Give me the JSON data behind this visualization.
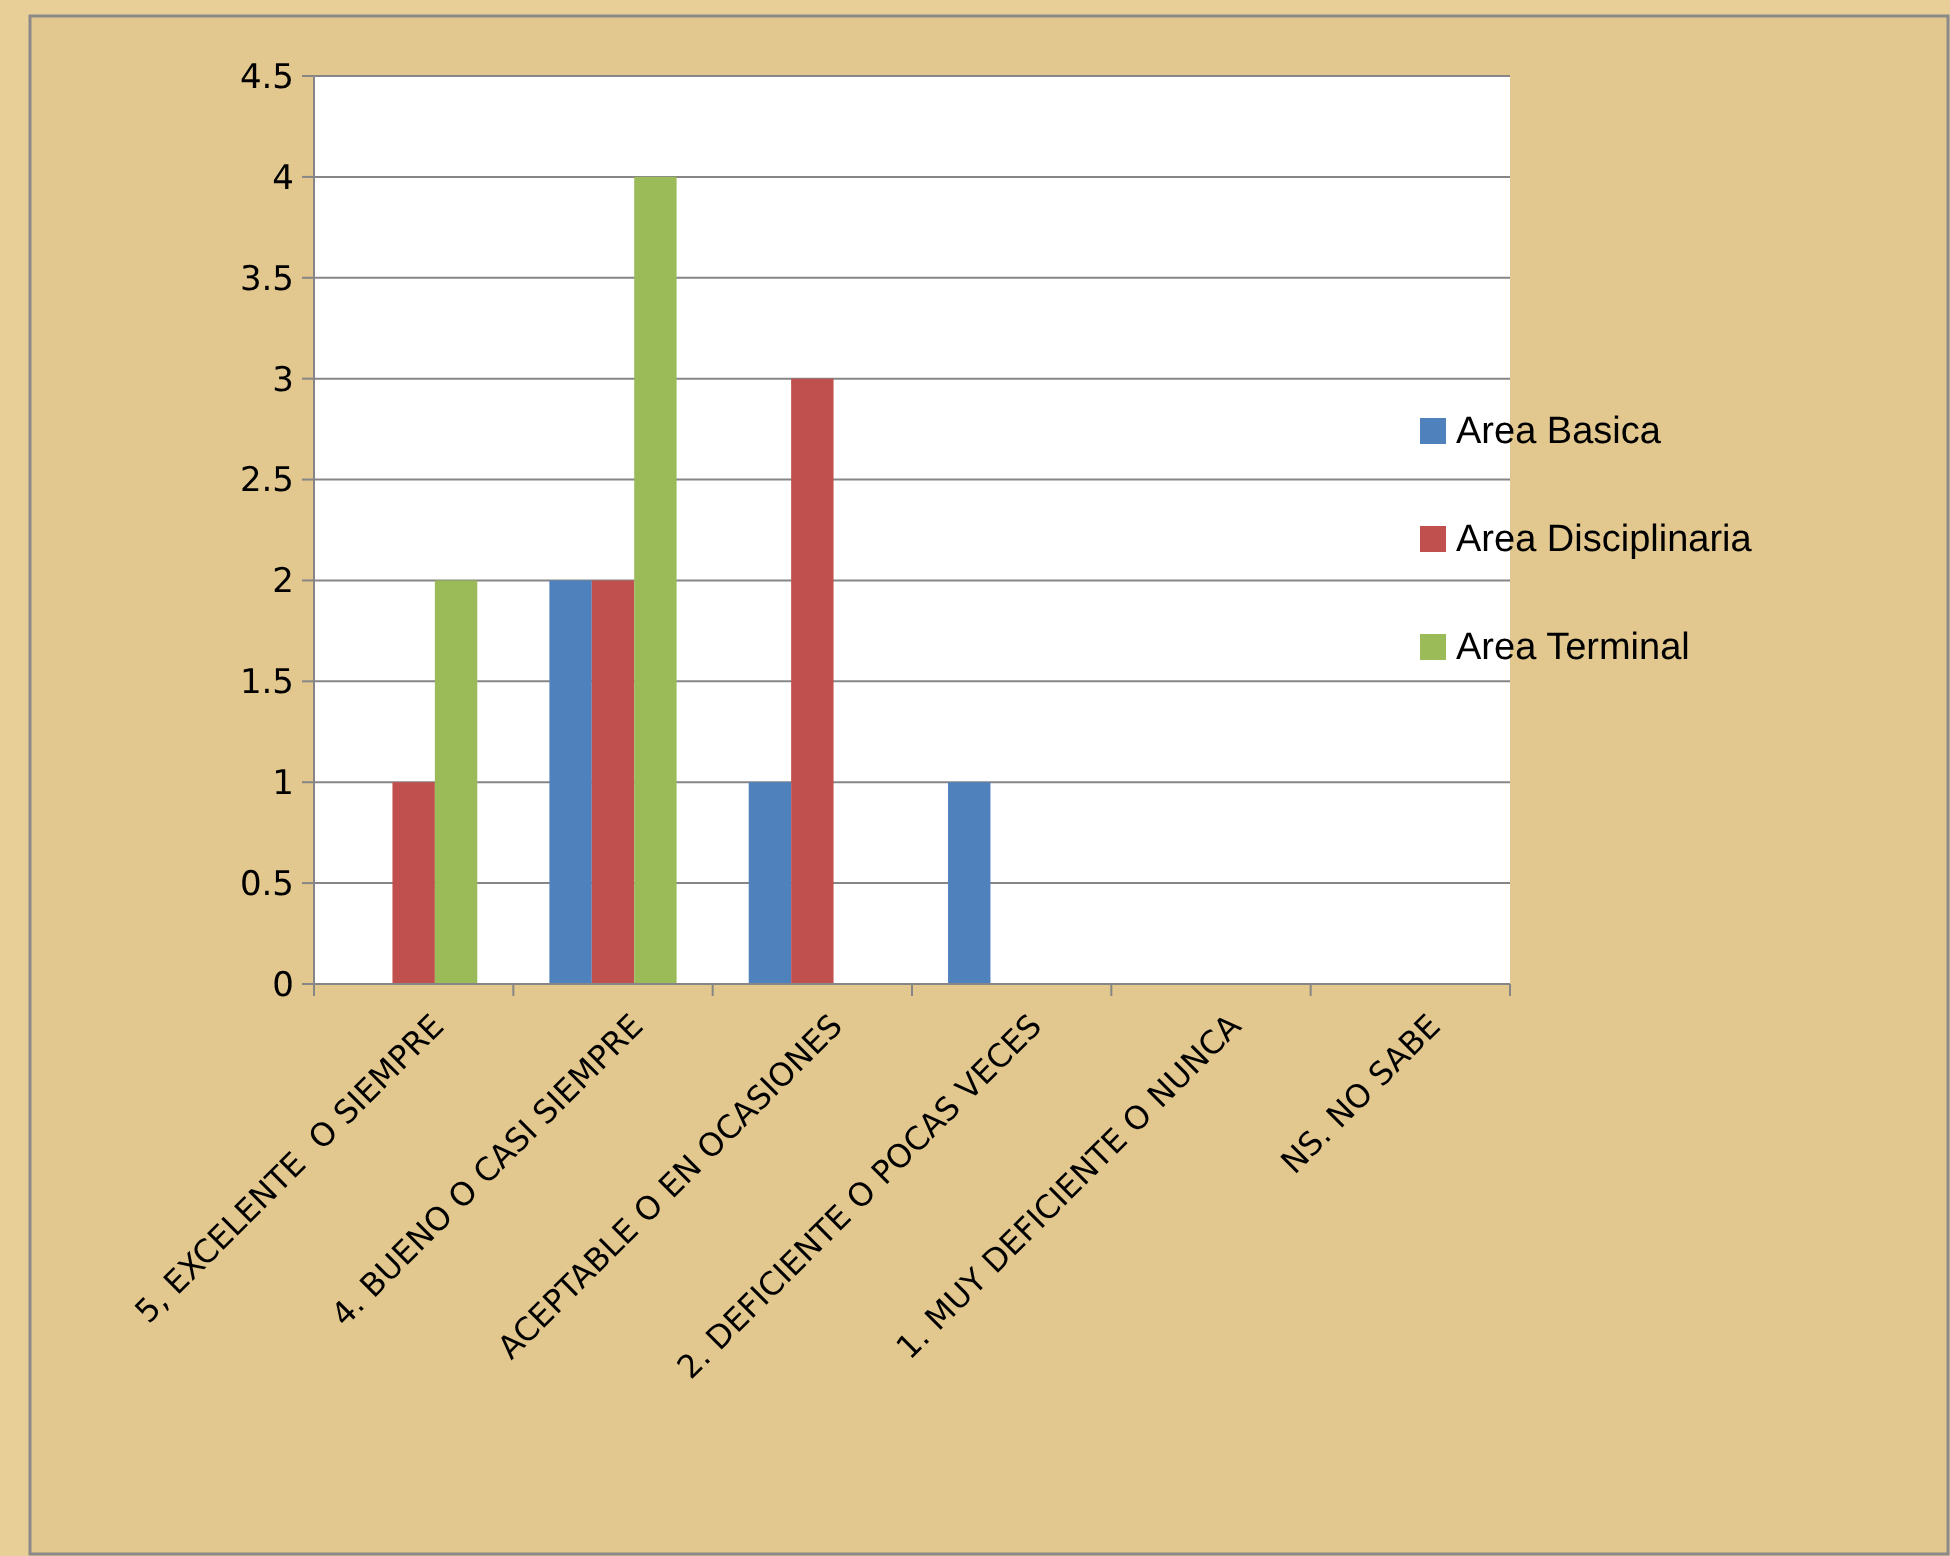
{
  "chart_data": {
    "type": "bar",
    "categories": [
      "5, EXCELENTE  O SIEMPRE",
      "4. BUENO O CASI SIEMPRE",
      "ACEPTABLE O EN OCASIONES",
      "2. DEFICIENTE O POCAS VECES",
      "1. MUY DEFICIENTE O NUNCA",
      "NS. NO SABE"
    ],
    "series": [
      {
        "name": "Area Basica",
        "color": "#4f81bd",
        "values": [
          0,
          2,
          1,
          1,
          0,
          0
        ]
      },
      {
        "name": "Area Disciplinaria",
        "color": "#c0504d",
        "values": [
          1,
          2,
          3,
          0,
          0,
          0
        ]
      },
      {
        "name": "Area Terminal",
        "color": "#9bbb59",
        "values": [
          2,
          4,
          0,
          0,
          0,
          0
        ]
      }
    ],
    "ylim": [
      0,
      4.5
    ],
    "yticks": [
      0,
      0.5,
      1,
      1.5,
      2,
      2.5,
      3,
      3.5,
      4,
      4.5
    ],
    "grid": "y",
    "legend": "right"
  }
}
